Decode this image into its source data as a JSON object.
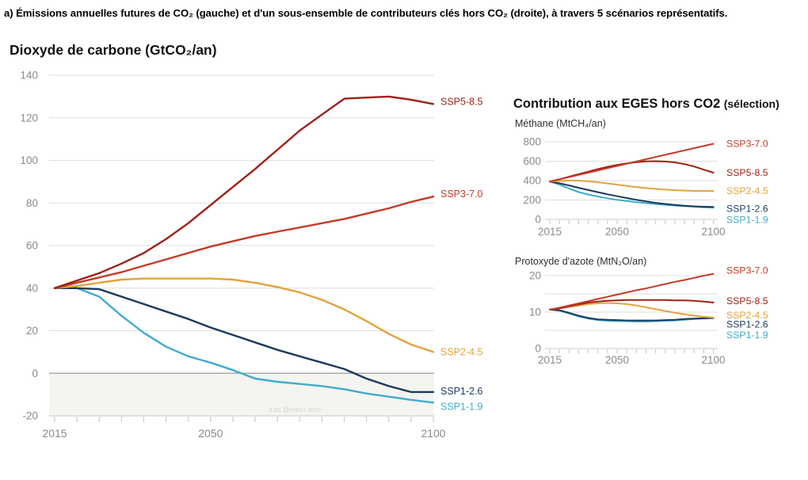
{
  "page": {
    "caption": "a) Émissions annuelles futures de CO₂ (gauche) et d'un sous-ensemble de contributeurs clés hors CO₂ (droite), à travers 5 scénarios représentatifs."
  },
  "right_panel": {
    "header_main": "Contribution aux EGES hors CO2",
    "header_suffix": "(sélection)"
  },
  "watermark": "trad.@yann.web",
  "colors": {
    "ssp5_85": "#9e2015",
    "ssp3_70": "#c43a27",
    "ssp2_45": "#e2a33c",
    "ssp1_26": "#1b3a5e",
    "ssp1_19": "#41abcd",
    "grid": "#dedede",
    "zero_line": "#a9a9a9",
    "axis_line": "#c9c9c9",
    "tick": "#c5c5c5",
    "axis_text": "#8a8a8a",
    "shade": "#f4f4f1",
    "watermark_text": "#d8d6cc"
  },
  "chart_data": [
    {
      "id": "co2",
      "type": "line",
      "title": "Dioxyde de carbone (GtCO₂/an)",
      "xlabel": "",
      "ylabel": "GtCO₂/an",
      "xlim": [
        2015,
        2100
      ],
      "ylim": [
        -20,
        140
      ],
      "xticks": [
        2015,
        2050,
        2100
      ],
      "yticks": [
        140,
        120,
        100,
        80,
        60,
        40,
        20,
        0,
        -20
      ],
      "gridlines": [
        140,
        120,
        100,
        80,
        60,
        40,
        20
      ],
      "zero_line": true,
      "shade_below_zero": true,
      "legend_position": "right-of-line-ends",
      "x": [
        2015,
        2020,
        2025,
        2030,
        2035,
        2040,
        2045,
        2050,
        2055,
        2060,
        2065,
        2070,
        2075,
        2080,
        2085,
        2090,
        2095,
        2100
      ],
      "series": [
        {
          "name": "SSP5-8.5",
          "color": "#9e2015",
          "label_dy": -3,
          "values": [
            40,
            43.5,
            47,
            51.5,
            56.5,
            63,
            70.5,
            79,
            87.5,
            96,
            105,
            114,
            121.5,
            129,
            129.5,
            130,
            128.5,
            126.5
          ]
        },
        {
          "name": "SSP3-7.0",
          "color": "#c43a27",
          "label_dy": -3,
          "values": [
            40,
            42.5,
            45,
            47.5,
            50.5,
            53.5,
            56.5,
            59.5,
            62,
            64.5,
            66.5,
            68.5,
            70.5,
            72.5,
            75,
            77.5,
            80.5,
            83
          ]
        },
        {
          "name": "SSP2-4.5",
          "color": "#e2a33c",
          "label_dy": 0,
          "values": [
            40,
            41,
            42.5,
            44,
            44.5,
            44.5,
            44.5,
            44.5,
            44,
            42.5,
            40.5,
            38,
            34.5,
            30,
            24.5,
            18.5,
            13.5,
            10
          ]
        },
        {
          "name": "SSP1-2.6",
          "color": "#1b3a5e",
          "label_dy": -1,
          "values": [
            40,
            40,
            39.5,
            36,
            32.5,
            29,
            25.5,
            21.5,
            18,
            14.5,
            11,
            8,
            5,
            2,
            -2.5,
            -6,
            -8.8,
            -8.8
          ]
        },
        {
          "name": "SSP1-1.9",
          "color": "#41abcd",
          "label_dy": 5,
          "values": [
            40,
            40,
            36,
            27,
            19,
            12.5,
            8,
            5,
            1.5,
            -2.5,
            -4,
            -5,
            -6,
            -7.5,
            -9.5,
            -11,
            -12.5,
            -13.8
          ]
        }
      ]
    },
    {
      "id": "ch4",
      "type": "line",
      "title": "Méthane (MtCH₄/an)",
      "xlabel": "",
      "ylabel": "MtCH₄/an",
      "xlim": [
        2015,
        2100
      ],
      "ylim": [
        0,
        800
      ],
      "xticks": [
        2015,
        2050,
        2100
      ],
      "yticks": [
        800,
        600,
        400,
        200,
        0
      ],
      "gridlines": [
        800,
        600,
        400,
        200
      ],
      "zero_line": false,
      "shade_below_zero": false,
      "legend_position": "right-of-line-ends",
      "x": [
        2015,
        2020,
        2025,
        2030,
        2035,
        2040,
        2045,
        2050,
        2055,
        2060,
        2065,
        2070,
        2075,
        2080,
        2085,
        2090,
        2095,
        2100
      ],
      "series": [
        {
          "name": "SSP3-7.0",
          "color": "#c43a27",
          "label_dy": 0,
          "values": [
            390,
            413,
            436,
            459,
            482,
            505,
            528,
            551,
            574,
            597,
            620,
            643,
            666,
            689,
            712,
            735,
            757,
            780
          ]
        },
        {
          "name": "SSP5-8.5",
          "color": "#9e2015",
          "label_dy": 0,
          "values": [
            390,
            414,
            440,
            466,
            492,
            518,
            542,
            562,
            578,
            590,
            598,
            600,
            597,
            588,
            570,
            545,
            513,
            482
          ]
        },
        {
          "name": "SSP2-4.5",
          "color": "#e2a33c",
          "label_dy": 0,
          "values": [
            390,
            396,
            400,
            400,
            393,
            383,
            371,
            358,
            345,
            333,
            323,
            314,
            307,
            301,
            297,
            294,
            293,
            293
          ]
        },
        {
          "name": "SSP1-2.6",
          "color": "#1b3a5e",
          "label_dy": 2,
          "values": [
            390,
            372,
            350,
            326,
            303,
            281,
            259,
            239,
            220,
            202,
            186,
            171,
            159,
            149,
            141,
            135,
            131,
            128
          ]
        },
        {
          "name": "SSP1-1.9",
          "color": "#41abcd",
          "label_dy": 15,
          "values": [
            390,
            358,
            318,
            282,
            256,
            236,
            218,
            202,
            189,
            177,
            167,
            158,
            150,
            143,
            137,
            131,
            125,
            120
          ]
        }
      ]
    },
    {
      "id": "n2o",
      "type": "line",
      "title": "Protoxyde d'azote (MtN₂O/an)",
      "xlabel": "",
      "ylabel": "MtN₂O/an",
      "xlim": [
        2015,
        2100
      ],
      "ylim": [
        0,
        22
      ],
      "xticks": [
        2015,
        2050,
        2100
      ],
      "yticks": [
        20,
        10,
        0
      ],
      "gridlines": [
        20,
        15,
        10,
        5
      ],
      "zero_line": false,
      "shade_below_zero": false,
      "legend_position": "right-of-line-ends",
      "x": [
        2015,
        2020,
        2025,
        2030,
        2035,
        2040,
        2045,
        2050,
        2055,
        2060,
        2065,
        2070,
        2075,
        2080,
        2085,
        2090,
        2095,
        2100
      ],
      "series": [
        {
          "name": "SSP3-7.0",
          "color": "#c43a27",
          "label_dy": -4,
          "values": [
            10.7,
            11.2,
            11.8,
            12.4,
            13.0,
            13.6,
            14.2,
            14.8,
            15.4,
            16.0,
            16.5,
            17.1,
            17.7,
            18.3,
            18.8,
            19.4,
            20.0,
            20.5
          ]
        },
        {
          "name": "SSP5-8.5",
          "color": "#9e2015",
          "label_dy": -2,
          "values": [
            10.7,
            11.0,
            11.6,
            12.1,
            12.6,
            12.9,
            13.1,
            13.2,
            13.3,
            13.3,
            13.3,
            13.3,
            13.3,
            13.2,
            13.2,
            13.1,
            12.9,
            12.6
          ]
        },
        {
          "name": "SSP2-4.5",
          "color": "#e2a33c",
          "label_dy": -3,
          "values": [
            10.7,
            11.0,
            11.4,
            11.8,
            12.2,
            12.4,
            12.5,
            12.4,
            12.2,
            11.8,
            11.3,
            10.8,
            10.3,
            9.8,
            9.4,
            9.0,
            8.7,
            8.5
          ]
        },
        {
          "name": "SSP1-2.6",
          "color": "#1b3a5e",
          "label_dy": 8,
          "values": [
            10.7,
            10.5,
            9.8,
            9.0,
            8.4,
            8.0,
            7.9,
            7.8,
            7.7,
            7.7,
            7.7,
            7.7,
            7.8,
            7.9,
            8.1,
            8.2,
            8.3,
            8.4
          ]
        },
        {
          "name": "SSP1-1.9",
          "color": "#41abcd",
          "label_dy": 21,
          "values": [
            10.7,
            10.4,
            9.6,
            8.8,
            8.2,
            7.8,
            7.6,
            7.5,
            7.5,
            7.4,
            7.4,
            7.5,
            7.6,
            7.7,
            7.9,
            8.1,
            8.2,
            8.3
          ]
        }
      ]
    }
  ]
}
